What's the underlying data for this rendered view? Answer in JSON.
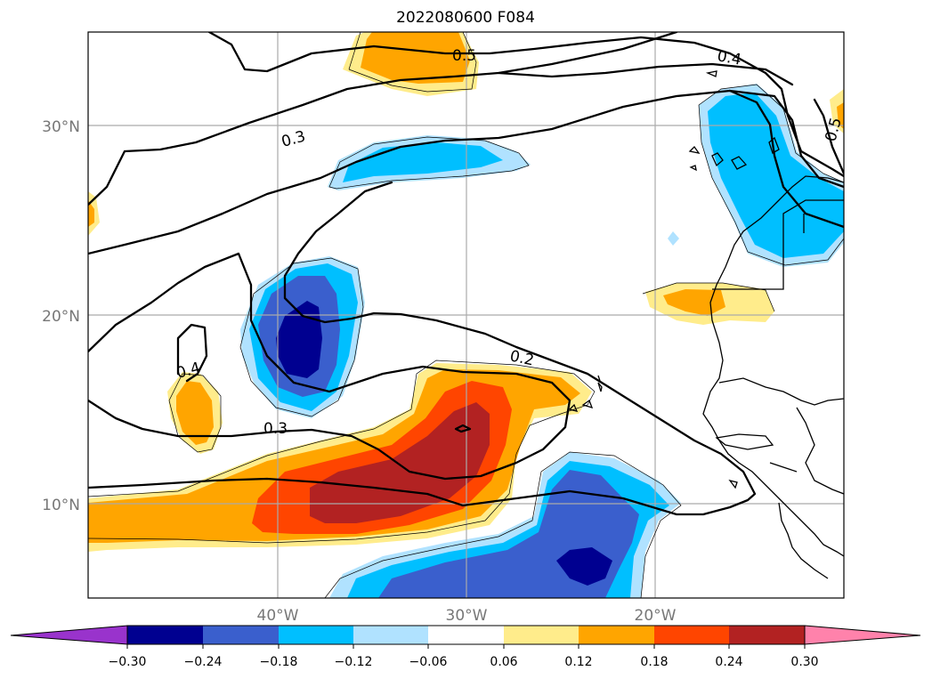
{
  "title": "2022080600 F084",
  "map": {
    "lat_labels": [
      "30°N",
      "20°N",
      "10°N"
    ],
    "lon_labels": [
      "40°W",
      "30°W",
      "20°W"
    ],
    "grid": true,
    "contour_labels": [
      "0.5",
      "0.4",
      "0.3",
      "0.2",
      "0.4",
      "0.3",
      "0.5"
    ]
  },
  "colors": {
    "neg_030": "#9933cc",
    "neg_024": "#000090",
    "neg_018": "#3a5fcd",
    "neg_012": "#00bfff",
    "neg_006": "#b0e2ff",
    "zero": "#ffffff",
    "pos_006": "#ffec8b",
    "pos_012": "#ffa500",
    "pos_018": "#ff4500",
    "pos_024": "#b22222",
    "pos_030": "#ff82ab"
  },
  "colorbar": {
    "tick_labels": [
      "−0.30",
      "−0.24",
      "−0.18",
      "−0.12",
      "−0.06",
      "0.06",
      "0.12",
      "0.18",
      "0.24",
      "0.30"
    ],
    "colors": [
      "#9933cc",
      "#000090",
      "#3a5fcd",
      "#00bfff",
      "#b0e2ff",
      "#ffffff",
      "#ffec8b",
      "#ffa500",
      "#ff4500",
      "#b22222",
      "#ff82ab"
    ]
  }
}
